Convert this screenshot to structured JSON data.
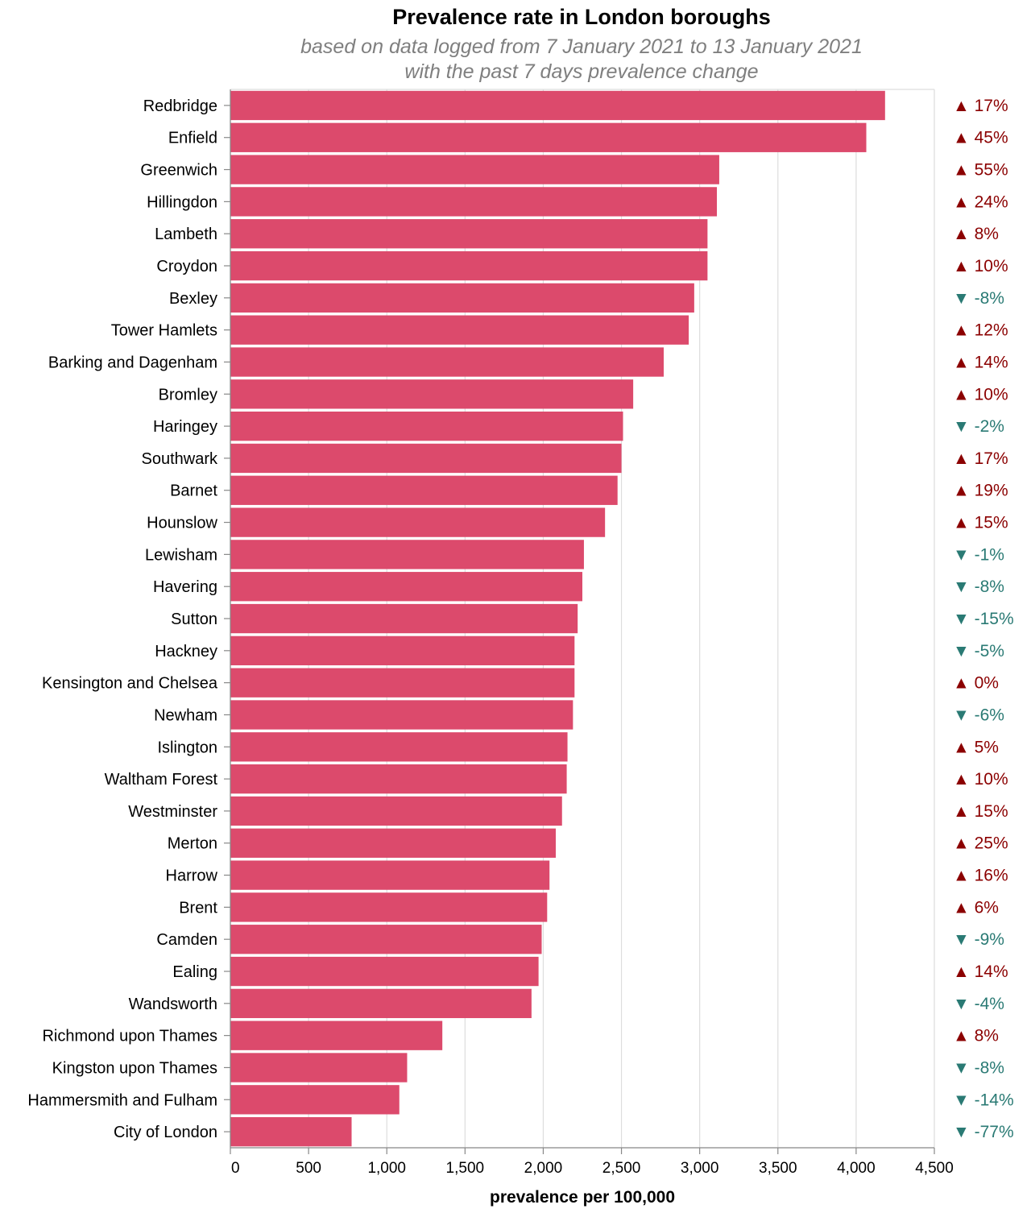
{
  "chart_data": {
    "type": "bar",
    "orientation": "horizontal",
    "title": "Prevalence rate in London boroughs",
    "subtitle": [
      "based on data logged from 7 January 2021 to 13 January 2021",
      "with the past 7 days prevalence change"
    ],
    "xlabel": "prevalence per 100,000",
    "ylabel": "",
    "xlim": [
      0,
      4500
    ],
    "xticks": [
      0,
      500,
      1000,
      1500,
      2000,
      2500,
      3000,
      3500,
      4000,
      4500
    ],
    "xtick_labels": [
      "0",
      "500",
      "1,000",
      "1,500",
      "2,000",
      "2,500",
      "3,000",
      "3,500",
      "4,000",
      "4,500"
    ],
    "grid": true,
    "bar_color": "#dc4a6c",
    "up_color": "#8b0000",
    "down_color": "#2a7a74",
    "categories": [
      "Redbridge",
      "Enfield",
      "Greenwich",
      "Hillingdon",
      "Lambeth",
      "Croydon",
      "Bexley",
      "Tower Hamlets",
      "Barking and Dagenham",
      "Bromley",
      "Haringey",
      "Southwark",
      "Barnet",
      "Hounslow",
      "Lewisham",
      "Havering",
      "Sutton",
      "Hackney",
      "Kensington and Chelsea",
      "Newham",
      "Islington",
      "Waltham Forest",
      "Westminster",
      "Merton",
      "Harrow",
      "Brent",
      "Camden",
      "Ealing",
      "Wandsworth",
      "Richmond upon Thames",
      "Kingston upon Thames",
      "Hammersmith and Fulham",
      "City of London"
    ],
    "values": [
      4185,
      4065,
      3125,
      3110,
      3050,
      3050,
      2965,
      2930,
      2770,
      2575,
      2510,
      2500,
      2475,
      2395,
      2260,
      2250,
      2220,
      2200,
      2200,
      2190,
      2155,
      2150,
      2120,
      2080,
      2040,
      2025,
      1990,
      1970,
      1925,
      1355,
      1130,
      1080,
      775
    ],
    "change_labels": [
      "▲ 17%",
      "▲ 45%",
      "▲ 55%",
      "▲ 24%",
      "▲ 8%",
      "▲ 10%",
      "▼ -8%",
      "▲ 12%",
      "▲ 14%",
      "▲ 10%",
      "▼ -2%",
      "▲ 17%",
      "▲ 19%",
      "▲ 15%",
      "▼ -1%",
      "▼ -8%",
      "▼ -15%",
      "▼ -5%",
      "▲ 0%",
      "▼ -6%",
      "▲ 5%",
      "▲ 10%",
      "▲ 15%",
      "▲ 25%",
      "▲ 16%",
      "▲ 6%",
      "▼ -9%",
      "▲ 14%",
      "▼ -4%",
      "▲ 8%",
      "▼ -8%",
      "▼ -14%",
      "▼ -77%"
    ],
    "change_direction": [
      "up",
      "up",
      "up",
      "up",
      "up",
      "up",
      "down",
      "up",
      "up",
      "up",
      "down",
      "up",
      "up",
      "up",
      "down",
      "down",
      "down",
      "down",
      "up",
      "down",
      "up",
      "up",
      "up",
      "up",
      "up",
      "up",
      "down",
      "up",
      "down",
      "up",
      "down",
      "down",
      "down"
    ]
  }
}
